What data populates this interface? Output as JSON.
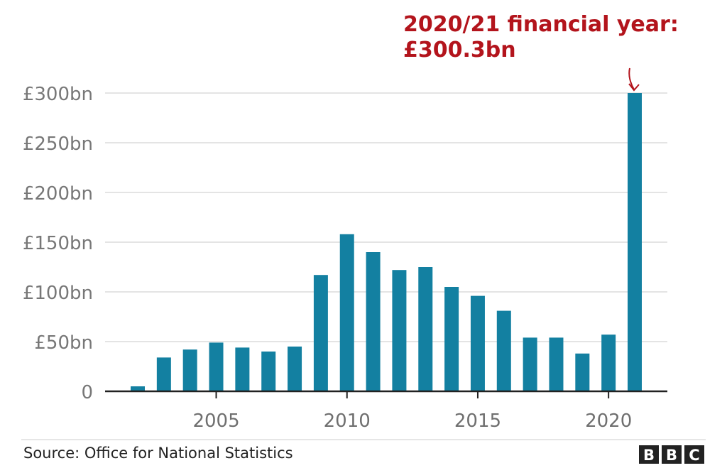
{
  "annotation": {
    "line1": "2020/21 financial year:",
    "line2": "£300.3bn"
  },
  "source": "Source: Office for National Statistics",
  "logo": {
    "letters": [
      "B",
      "B",
      "C"
    ]
  },
  "colors": {
    "bar": "#1380a1",
    "annotation": "#b3141c",
    "grid": "#dcdcdc",
    "axis": "#222222"
  },
  "chart_data": {
    "type": "bar",
    "title": "",
    "xlabel": "",
    "ylabel": "",
    "x": [
      2002,
      2003,
      2004,
      2005,
      2006,
      2007,
      2008,
      2009,
      2010,
      2011,
      2012,
      2013,
      2014,
      2015,
      2016,
      2017,
      2018,
      2019,
      2020,
      2021
    ],
    "values": [
      5,
      34,
      42,
      49,
      44,
      40,
      45,
      117,
      158,
      140,
      122,
      125,
      105,
      96,
      81,
      54,
      54,
      38,
      57,
      300.3
    ],
    "ylim": [
      0,
      300
    ],
    "yticks": [
      0,
      50,
      100,
      150,
      200,
      250,
      300
    ],
    "ytick_labels": [
      "0",
      "£50bn",
      "£100bn",
      "£150bn",
      "£200bn",
      "£250bn",
      "£300bn"
    ],
    "xticks": [
      2005,
      2010,
      2015,
      2020
    ],
    "xtick_labels": [
      "2005",
      "2010",
      "2015",
      "2020"
    ],
    "grid": true,
    "legend": "none",
    "highlight": {
      "index": 19,
      "label": "2020/21 financial year:",
      "value_label": "£300.3bn"
    }
  }
}
